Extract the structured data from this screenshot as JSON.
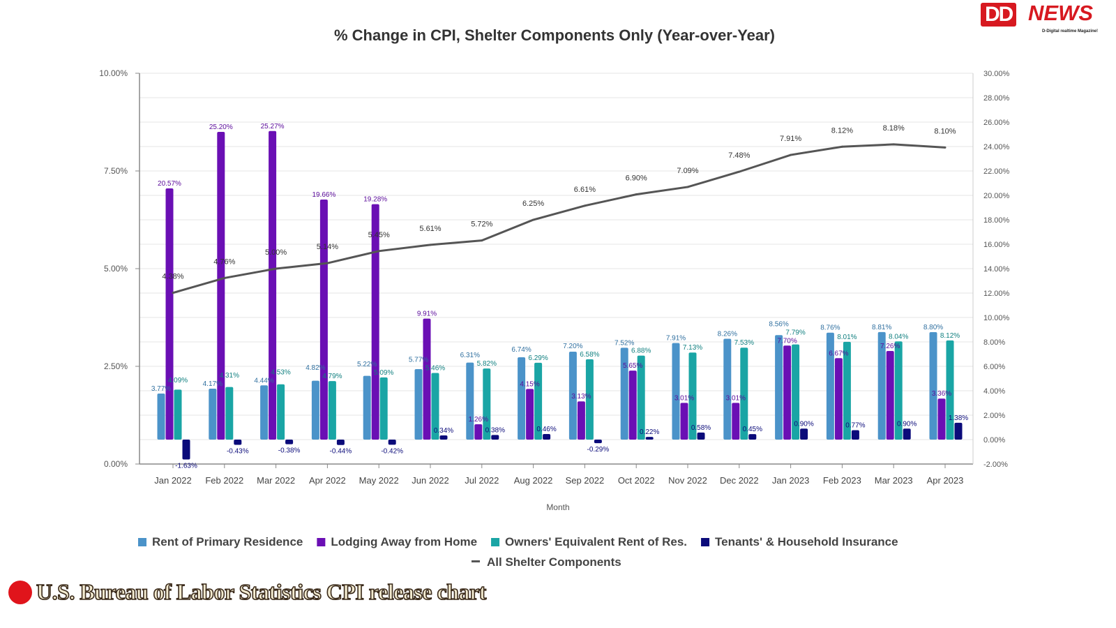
{
  "logo": {
    "brand": "DD NEWS",
    "dd": "DD",
    "news": "NEWS",
    "tagline": "D-Digital realtime Magazine!"
  },
  "caption": "U.S. Bureau of Labor Statistics CPI release chart",
  "colors": {
    "rent": "#4b93c9",
    "lodging": "#6a0fb4",
    "oer": "#1aa5a5",
    "insurance": "#0b0b7a",
    "line": "#555555"
  },
  "chart_data": {
    "type": "bar",
    "title": "% Change in CPI, Shelter Components Only (Year-over-Year)",
    "xlabel": "Month",
    "ylabel_left": "",
    "ylabel_right": "",
    "ylim_left": [
      0,
      10
    ],
    "ylim_right": [
      -2,
      30
    ],
    "left_ticks": [
      "0.00%",
      "2.50%",
      "5.00%",
      "7.50%",
      "10.00%"
    ],
    "right_ticks": [
      "-2.00%",
      "0.00%",
      "2.00%",
      "4.00%",
      "6.00%",
      "8.00%",
      "10.00%",
      "12.00%",
      "14.00%",
      "16.00%",
      "18.00%",
      "20.00%",
      "22.00%",
      "24.00%",
      "26.00%",
      "28.00%",
      "30.00%"
    ],
    "grid": true,
    "legend_position": "bottom",
    "categories": [
      "Jan 2022",
      "Feb 2022",
      "Mar 2022",
      "Apr 2022",
      "May 2022",
      "Jun 2022",
      "Jul 2022",
      "Aug 2022",
      "Sep 2022",
      "Oct 2022",
      "Nov 2022",
      "Dec 2022",
      "Jan 2023",
      "Feb 2023",
      "Mar 2023",
      "Apr 2023"
    ],
    "series": [
      {
        "name": "Rent of Primary Residence",
        "key": "rent",
        "axis": "right",
        "kind": "bar",
        "values": [
          3.77,
          4.17,
          4.44,
          4.82,
          5.22,
          5.77,
          6.31,
          6.74,
          7.2,
          7.52,
          7.91,
          8.26,
          8.56,
          8.76,
          8.81,
          8.8
        ]
      },
      {
        "name": "Lodging Away from Home",
        "key": "lodging",
        "axis": "right",
        "kind": "bar",
        "values": [
          20.57,
          25.2,
          25.27,
          19.66,
          19.28,
          9.91,
          1.26,
          4.15,
          3.13,
          5.65,
          3.01,
          3.01,
          7.7,
          6.67,
          7.26,
          3.36
        ]
      },
      {
        "name": "Owners' Equivalent Rent of Res.",
        "key": "oer",
        "axis": "right",
        "kind": "bar",
        "values": [
          4.09,
          4.31,
          4.53,
          4.79,
          5.09,
          5.46,
          5.82,
          6.29,
          6.58,
          6.88,
          7.13,
          7.53,
          7.79,
          8.01,
          8.04,
          8.12
        ]
      },
      {
        "name": "Tenants' & Household Insurance",
        "key": "insurance",
        "axis": "right",
        "kind": "bar",
        "values": [
          -1.63,
          -0.43,
          -0.38,
          -0.44,
          -0.42,
          0.34,
          0.38,
          0.46,
          -0.29,
          0.22,
          0.58,
          0.45,
          0.9,
          0.77,
          0.9,
          1.38
        ]
      },
      {
        "name": "All Shelter Components",
        "key": "line",
        "axis": "left",
        "kind": "line",
        "values": [
          4.38,
          4.76,
          5.0,
          5.14,
          5.45,
          5.61,
          5.72,
          6.25,
          6.61,
          6.9,
          7.09,
          7.48,
          7.91,
          8.12,
          8.18,
          8.1
        ]
      }
    ]
  }
}
